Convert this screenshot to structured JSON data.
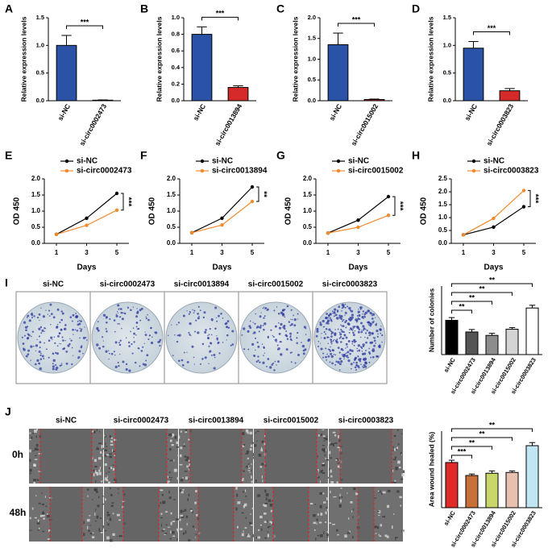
{
  "figure": {
    "colony_labels": [
      "si-NC",
      "si-circ0002473",
      "si-circ0013894",
      "si-circ0015002",
      "si-circ0003823"
    ],
    "wound_labels": [
      "si-NC",
      "si-circ0002473",
      "si-circ0013894",
      "si-circ0015002",
      "si-circ0003823"
    ],
    "timepoints": [
      "0h",
      "48h"
    ]
  },
  "chart_data": [
    {
      "type": "bar",
      "panel": "A",
      "ylabel": "Relative expression levels",
      "categories": [
        "si-NC",
        "si-circ0002473"
      ],
      "values": [
        1.0,
        0.01
      ],
      "errors": [
        0.18,
        0.005
      ],
      "colors": [
        "#2a52a6",
        "#d42a2a"
      ],
      "ylim": [
        0,
        1.5
      ],
      "yticks": [
        {
          "value": 0,
          "label": "0.0"
        },
        0.5,
        {
          "value": 1,
          "label": "1.0"
        },
        1.5
      ],
      "significance": "***"
    },
    {
      "type": "bar",
      "panel": "B",
      "ylabel": "Relative expression levels",
      "categories": [
        "si-NC",
        "si-circ0013894"
      ],
      "values": [
        0.8,
        0.16
      ],
      "errors": [
        0.09,
        0.02
      ],
      "colors": [
        "#2a52a6",
        "#d42a2a"
      ],
      "ylim": [
        0,
        1.0
      ],
      "yticks": [
        {
          "value": 0,
          "label": "0.0"
        },
        0.2,
        0.4,
        0.6,
        0.8,
        {
          "value": 1,
          "label": "1.0"
        }
      ],
      "significance": "***"
    },
    {
      "type": "bar",
      "panel": "C",
      "ylabel": "Relative expression levels",
      "categories": [
        "si-NC",
        "si-circ0015002"
      ],
      "values": [
        1.35,
        0.03
      ],
      "errors": [
        0.28,
        0.01
      ],
      "colors": [
        "#2a52a6",
        "#d42a2a"
      ],
      "ylim": [
        0,
        2.0
      ],
      "yticks": [
        {
          "value": 0,
          "label": "0.0"
        },
        0.5,
        {
          "value": 1,
          "label": "1.0"
        },
        1.5,
        {
          "value": 2,
          "label": "2.0"
        }
      ],
      "significance": "***"
    },
    {
      "type": "bar",
      "panel": "D",
      "ylabel": "Relative expression levels",
      "categories": [
        "si-NC",
        "si-circ0003823"
      ],
      "values": [
        0.95,
        0.18
      ],
      "errors": [
        0.12,
        0.04
      ],
      "colors": [
        "#2a52a6",
        "#d42a2a"
      ],
      "ylim": [
        0,
        1.5
      ],
      "yticks": [
        {
          "value": 0,
          "label": "0.0"
        },
        0.5,
        {
          "value": 1,
          "label": "1.0"
        },
        1.5
      ],
      "significance": "***"
    },
    {
      "type": "line",
      "panel": "E",
      "xlabel": "Days",
      "ylabel": "OD 450",
      "x": [
        1,
        3,
        5
      ],
      "xlim": [
        0.2,
        5.8
      ],
      "xticks": [
        1,
        3,
        5
      ],
      "ylim": [
        0,
        2.0
      ],
      "yticks": [
        {
          "value": 0,
          "label": "0.0"
        },
        0.5,
        {
          "value": 1,
          "label": "1.0"
        },
        1.5,
        {
          "value": 2,
          "label": "2.0"
        }
      ],
      "series": [
        {
          "name": "si-NC",
          "color": "#000000",
          "values": [
            0.28,
            0.78,
            1.55
          ]
        },
        {
          "name": "si-circ0002473",
          "color": "#f28a2e",
          "values": [
            0.28,
            0.56,
            1.03
          ]
        }
      ],
      "significance": "***"
    },
    {
      "type": "line",
      "panel": "F",
      "xlabel": "Days",
      "ylabel": "OD 450",
      "x": [
        1,
        3,
        5
      ],
      "xlim": [
        0.2,
        5.8
      ],
      "xticks": [
        1,
        3,
        5
      ],
      "ylim": [
        0,
        2.0
      ],
      "yticks": [
        {
          "value": 0,
          "label": "0.0"
        },
        0.5,
        {
          "value": 1,
          "label": "1.0"
        },
        1.5,
        {
          "value": 2,
          "label": "2.0"
        }
      ],
      "series": [
        {
          "name": "si-NC",
          "color": "#000000",
          "values": [
            0.33,
            0.78,
            1.75
          ]
        },
        {
          "name": "si-circ0013894",
          "color": "#f28a2e",
          "values": [
            0.33,
            0.57,
            1.3
          ]
        }
      ],
      "significance": "**"
    },
    {
      "type": "line",
      "panel": "G",
      "xlabel": "Days",
      "ylabel": "OD 450",
      "x": [
        1,
        3,
        5
      ],
      "xlim": [
        0.2,
        5.8
      ],
      "xticks": [
        1,
        3,
        5
      ],
      "ylim": [
        0,
        2.0
      ],
      "yticks": [
        {
          "value": 0,
          "label": "0.0"
        },
        0.5,
        {
          "value": 1,
          "label": "1.0"
        },
        1.5,
        {
          "value": 2,
          "label": "2.0"
        }
      ],
      "series": [
        {
          "name": "si-NC",
          "color": "#000000",
          "values": [
            0.32,
            0.72,
            1.45
          ]
        },
        {
          "name": "si-circ0015002",
          "color": "#f28a2e",
          "values": [
            0.32,
            0.5,
            0.87
          ]
        }
      ],
      "significance": "***"
    },
    {
      "type": "line",
      "panel": "H",
      "xlabel": "Days",
      "ylabel": "OD 450",
      "x": [
        1,
        3,
        5
      ],
      "xlim": [
        0.2,
        5.8
      ],
      "xticks": [
        1,
        3,
        5
      ],
      "ylim": [
        0,
        2.5
      ],
      "yticks": [
        {
          "value": 0,
          "label": "0.0"
        },
        0.5,
        {
          "value": 1,
          "label": "1.0"
        },
        1.5,
        {
          "value": 2,
          "label": "2.0"
        },
        2.5
      ],
      "series": [
        {
          "name": "si-NC",
          "color": "#000000",
          "values": [
            0.33,
            0.63,
            1.42
          ]
        },
        {
          "name": "si-circ0003823",
          "color": "#f28a2e",
          "values": [
            0.33,
            0.97,
            2.05
          ]
        }
      ],
      "significance": "***"
    },
    {
      "type": "bar",
      "panel": "I",
      "ylabel": "Number of colonies",
      "categories": [
        "si-NC",
        "si-circ0002473",
        "si-circ0013894",
        "si-circ0015002",
        "si-circ0003823"
      ],
      "values": [
        250,
        165,
        140,
        185,
        340
      ],
      "errors": [
        20,
        18,
        15,
        12,
        20
      ],
      "colors": [
        "#000000",
        "#555555",
        "#8c8c8c",
        "#d4d4d4",
        "#ffffff"
      ],
      "ylim": [
        0,
        500
      ],
      "significance": [
        "**",
        "**",
        "**",
        "**"
      ]
    },
    {
      "type": "bar",
      "panel": "J",
      "ylabel": "Area wound healed (%)",
      "categories": [
        "si-NC",
        "si-circ0002473",
        "si-circ0013894",
        "si-circ0015002",
        "si-circ0003823"
      ],
      "values": [
        59,
        42,
        45,
        46,
        81
      ],
      "errors": [
        3,
        2,
        3,
        2,
        4
      ],
      "colors": [
        "#e02a2a",
        "#c8703a",
        "#c8d66a",
        "#e8c0b0",
        "#bfe6f2"
      ],
      "ylim": [
        0,
        100
      ],
      "significance": [
        "***",
        "**",
        "**",
        "**"
      ]
    }
  ]
}
